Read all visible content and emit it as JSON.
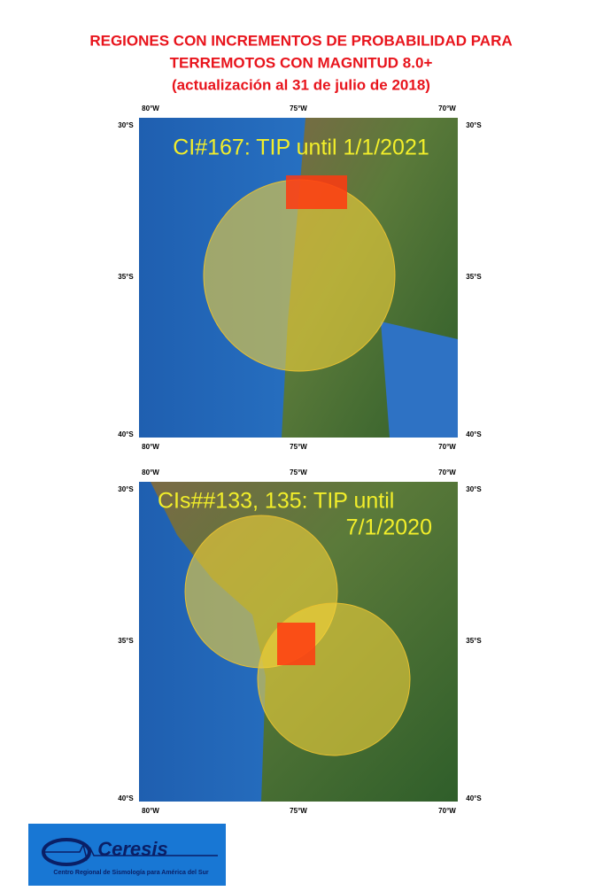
{
  "title": [
    "REGIONES CON INCREMENTOS DE PROBABILIDAD PARA",
    "TERREMOTOS CON MAGNITUD 8.0+",
    "(actualización al 31 de julio de 2018)"
  ],
  "maps": [
    {
      "caption": [
        "CI#167: TIP until 1/1/2021"
      ],
      "x_labels": [
        "80°W",
        "75°W",
        "70°W"
      ],
      "y_labels": [
        "30°S",
        "35°S",
        "40°S"
      ]
    },
    {
      "caption": [
        "CIs##133, 135: TIP until",
        "7/1/2020"
      ],
      "x_labels": [
        "80°W",
        "75°W",
        "70°W"
      ],
      "y_labels": [
        "30°S",
        "35°S",
        "40°S"
      ]
    }
  ],
  "logo": {
    "name": "Ceresis",
    "subtitle": "Centro Regional de Sismología para América del Sur"
  }
}
